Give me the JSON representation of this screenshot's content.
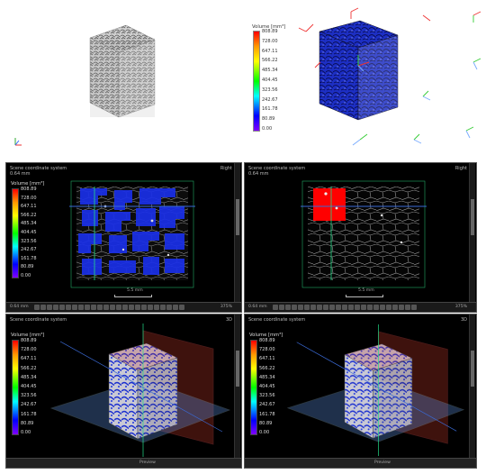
{
  "top": {
    "colorbar": {
      "title": "Volume [mm³]",
      "ticks": [
        "808.89",
        "728.00",
        "647.11",
        "566.22",
        "485.34",
        "404.45",
        "323.56",
        "242.67",
        "161.78",
        "80.89",
        "0.00"
      ]
    }
  },
  "panels": [
    {
      "title": "Scene coordinate system",
      "scale": "0.64 mm",
      "view": "Right",
      "scalebar_label": "5.5 mm",
      "footer": "0.64 mm",
      "zoom": "375%",
      "colorbar": {
        "title": "Volume [mm³]",
        "ticks": [
          "808.89",
          "728.00",
          "647.11",
          "566.22",
          "485.34",
          "404.45",
          "323.56",
          "242.67",
          "161.78",
          "80.89",
          "0.00"
        ]
      }
    },
    {
      "title": "Scene coordinate system",
      "scale": "0.64 mm",
      "view": "Right",
      "scalebar_label": "5.5 mm",
      "footer": "0.64 mm",
      "zoom": "375%"
    },
    {
      "title": "Scene coordinate system",
      "view": "3D",
      "colorbar": {
        "title": "Volume [mm³]",
        "ticks": [
          "808.89",
          "728.00",
          "647.11",
          "566.22",
          "485.34",
          "404.45",
          "323.56",
          "242.67",
          "161.78",
          "80.89",
          "0.00"
        ]
      },
      "preview_label": "Preview"
    },
    {
      "title": "Scene coordinate system",
      "view": "3D",
      "colorbar": {
        "title": "Volume [mm³]",
        "ticks": [
          "808.89",
          "728.00",
          "647.11",
          "566.22",
          "485.34",
          "404.45",
          "323.56",
          "242.67",
          "161.78",
          "80.89",
          "0.00"
        ]
      },
      "preview_label": "Preview"
    }
  ]
}
